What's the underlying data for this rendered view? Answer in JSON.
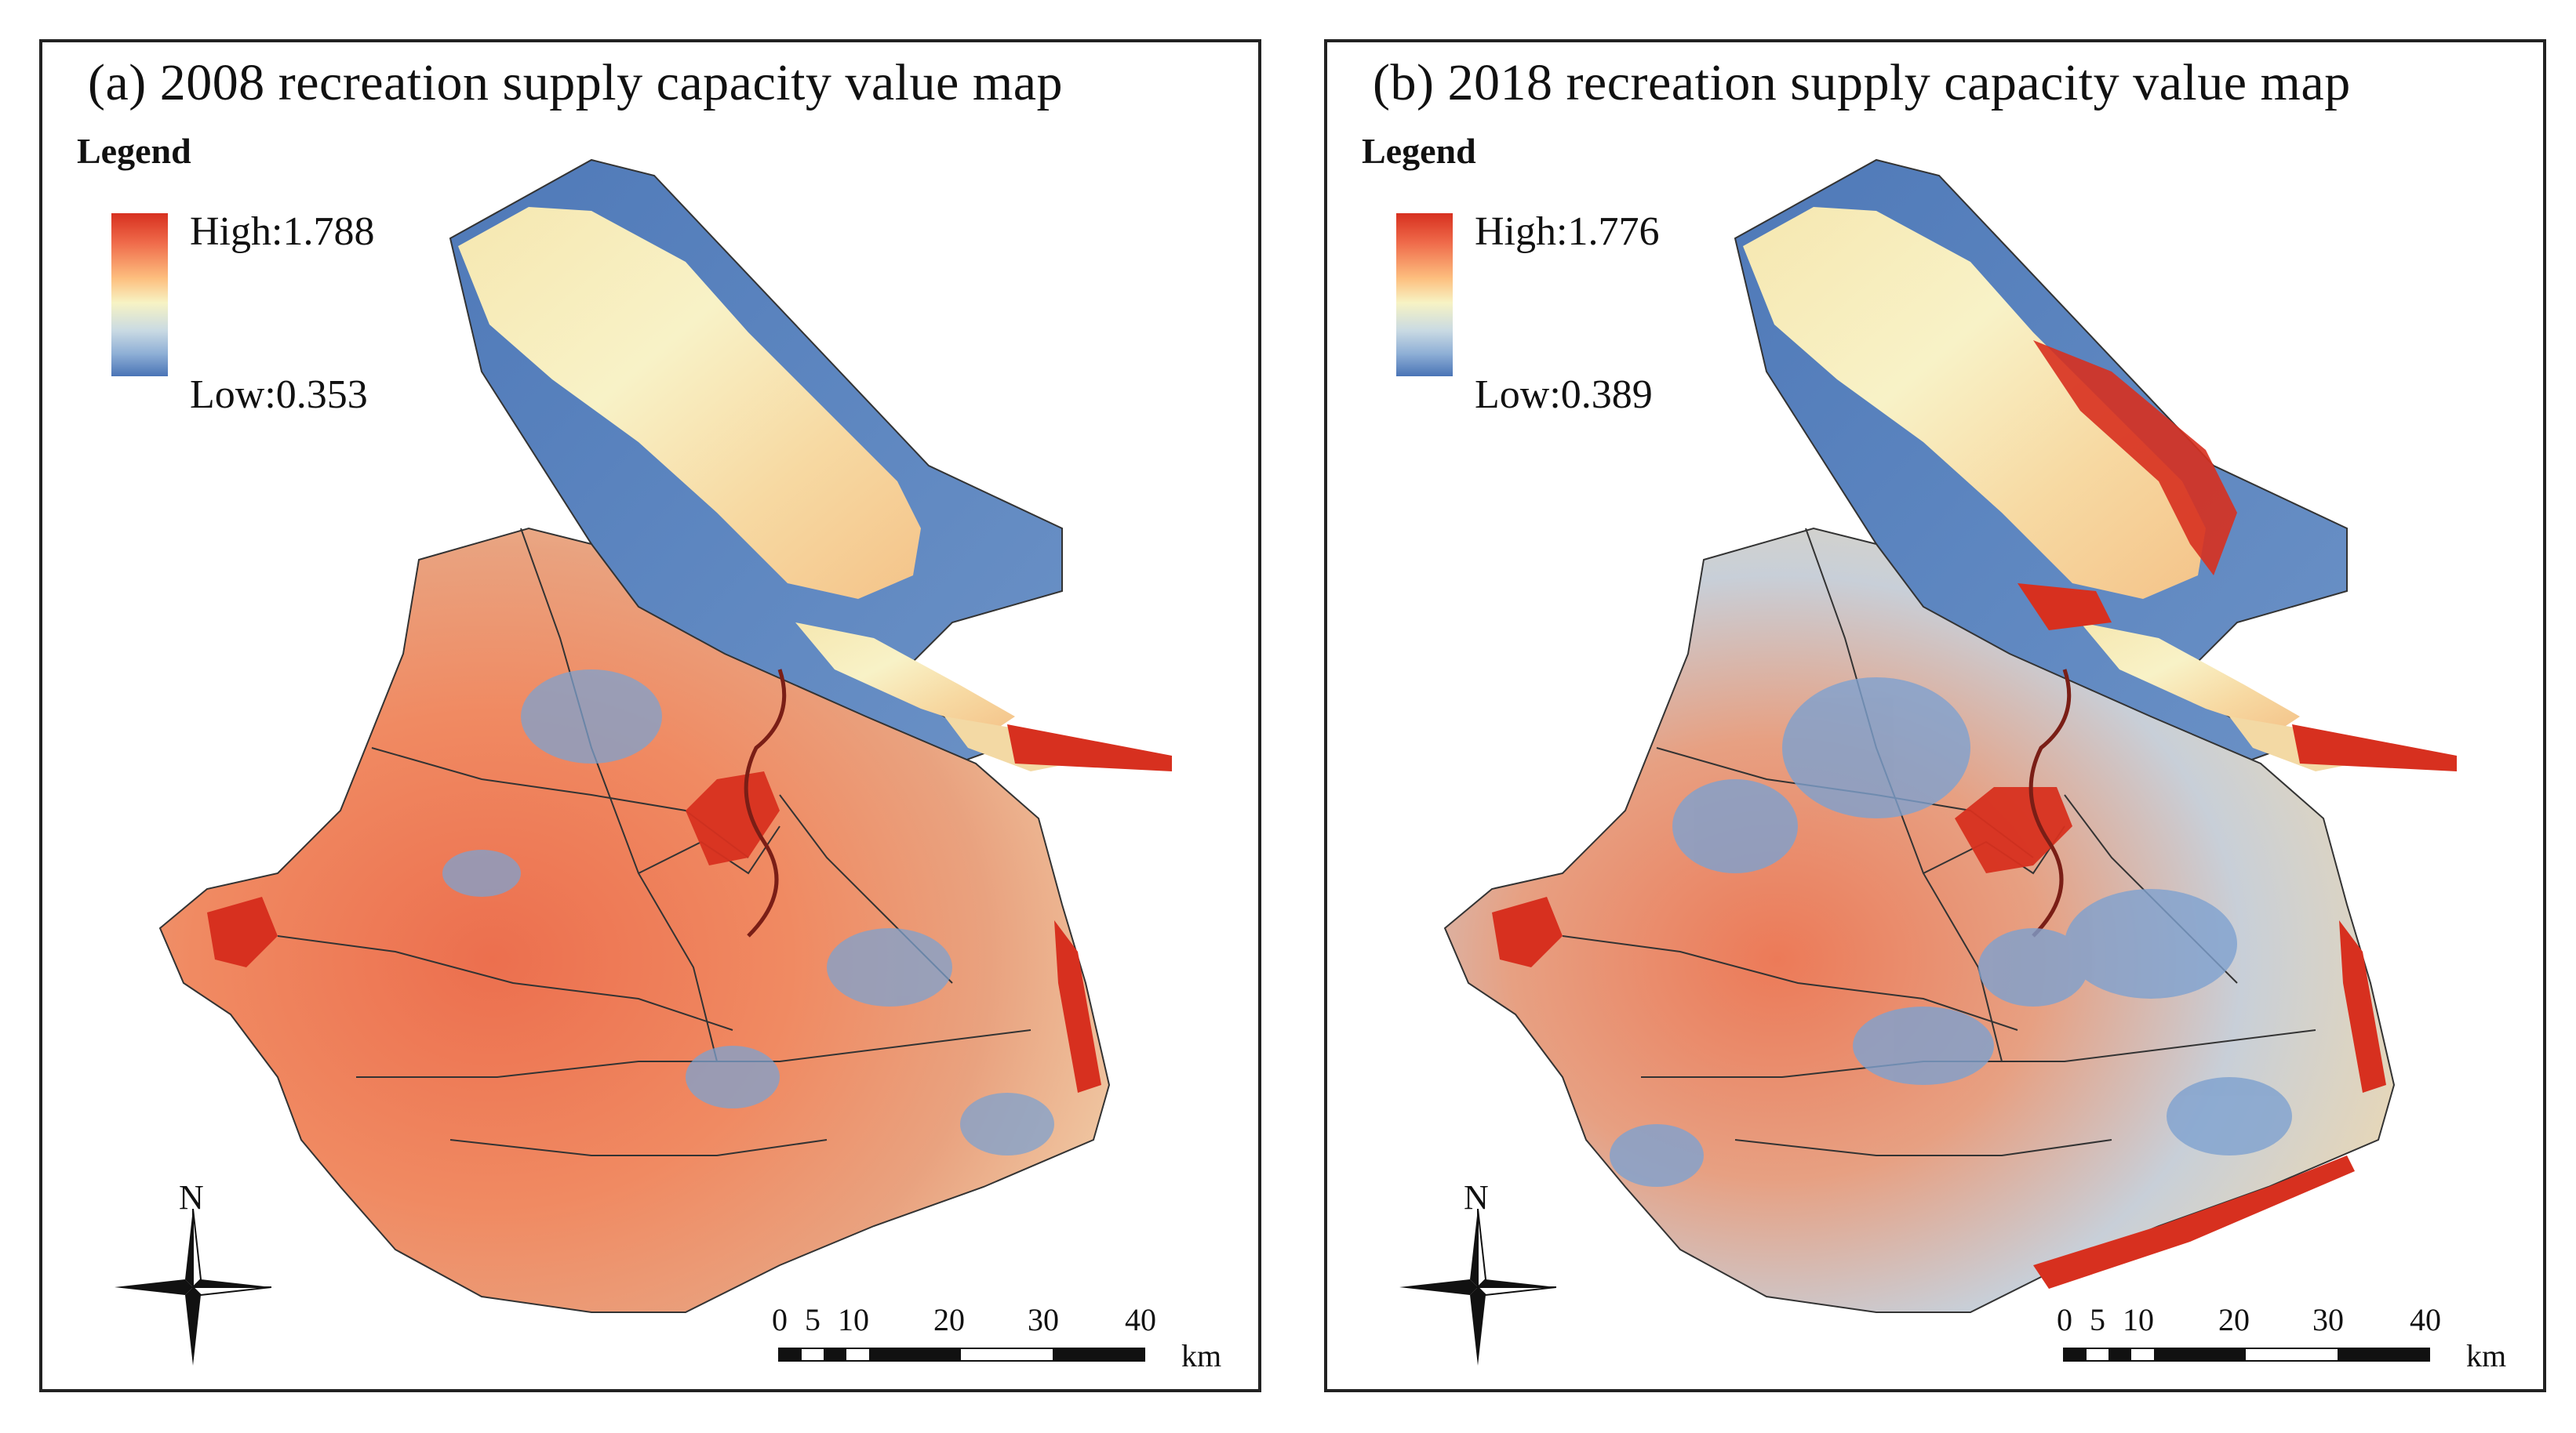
{
  "panels": [
    {
      "title": "(a) 2008 recreation supply capacity value map",
      "legend": {
        "heading": "Legend",
        "high": "High:1.788",
        "low": "Low:0.353"
      },
      "north": "N",
      "scale": {
        "ticks": [
          "0",
          "5",
          "10",
          "20",
          "30",
          "40"
        ],
        "unit": "km"
      }
    },
    {
      "title": "(b) 2018 recreation supply capacity value map",
      "legend": {
        "heading": "Legend",
        "high": "High:1.776",
        "low": "Low:0.389"
      },
      "north": "N",
      "scale": {
        "ticks": [
          "0",
          "5",
          "10",
          "20",
          "30",
          "40"
        ],
        "unit": "km"
      }
    }
  ],
  "colors": {
    "high": "#d7301f",
    "mid": "#f7f3c4",
    "low": "#4a74b6",
    "frame": "#222222"
  }
}
